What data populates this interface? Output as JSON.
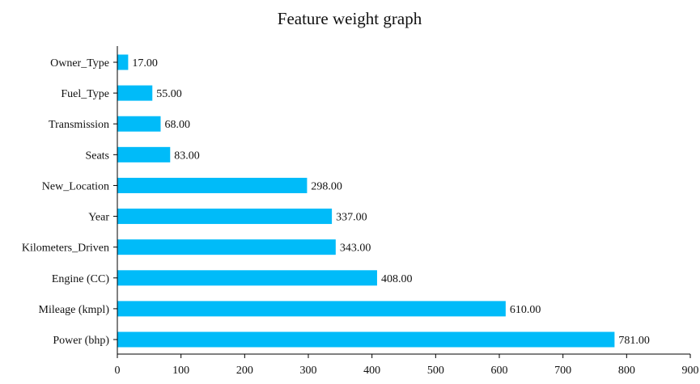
{
  "chart_data": {
    "type": "bar",
    "orientation": "horizontal",
    "title": "Feature weight graph",
    "xlabel": "",
    "ylabel": "",
    "categories": [
      "Owner_Type",
      "Fuel_Type",
      "Transmission",
      "Seats",
      "New_Location",
      "Year",
      "Kilometers_Driven",
      "Engine (CC)",
      "Mileage (kmpl)",
      "Power (bhp)"
    ],
    "values": [
      17,
      55,
      68,
      83,
      298,
      337,
      343,
      408,
      610,
      781
    ],
    "value_labels": [
      "17.00",
      "55.00",
      "68.00",
      "83.00",
      "298.00",
      "337.00",
      "343.00",
      "408.00",
      "610.00",
      "781.00"
    ],
    "xlim": [
      0,
      900
    ],
    "xticks": [
      0,
      100,
      200,
      300,
      400,
      500,
      600,
      700,
      800,
      900
    ],
    "grid": false,
    "legend": "none",
    "bar_color": "#00bbf9"
  }
}
